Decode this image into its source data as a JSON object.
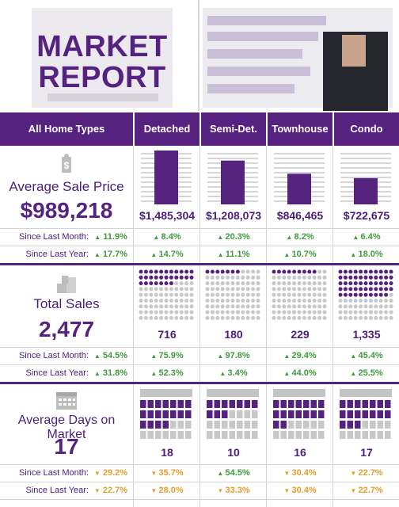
{
  "header": {
    "title_line1": "MARKET",
    "title_line2": "REPORT"
  },
  "columns": [
    "All Home Types",
    "Detached",
    "Semi-Det.",
    "Townhouse",
    "Condo"
  ],
  "colors": {
    "brand": "#55237f",
    "up": "#3f9b3f",
    "down": "#e0a030",
    "grid": "#d4d4d4",
    "inactive": "#c8c8c8"
  },
  "chart_data": [
    {
      "type": "bar",
      "metric": "Average Sale Price",
      "overall": "$989,218",
      "categories": [
        "Detached",
        "Semi-Det.",
        "Townhouse",
        "Condo"
      ],
      "values": [
        1485304,
        1208073,
        846465,
        722675
      ],
      "value_labels": [
        "$1,485,304",
        "$1,208,073",
        "$846,465",
        "$722,675"
      ],
      "since_last_month": {
        "label": "Since Last Month:",
        "overall": "11.9%",
        "overall_dir": "up",
        "values": [
          "8.4%",
          "20.3%",
          "8.2%",
          "6.4%"
        ],
        "dirs": [
          "up",
          "up",
          "up",
          "up"
        ]
      },
      "since_last_year": {
        "label": "Since Last Year:",
        "overall": "17.7%",
        "overall_dir": "up",
        "values": [
          "14.7%",
          "11.1%",
          "10.7%",
          "18.0%"
        ],
        "dirs": [
          "up",
          "up",
          "up",
          "up"
        ]
      }
    },
    {
      "type": "dot-matrix",
      "metric": "Total Sales",
      "overall": "2,477",
      "categories": [
        "Detached",
        "Semi-Det.",
        "Townhouse",
        "Condo"
      ],
      "values": [
        716,
        180,
        229,
        1335
      ],
      "value_labels": [
        "716",
        "180",
        "229",
        "1,335"
      ],
      "since_last_month": {
        "label": "Since Last Month:",
        "overall": "54.5%",
        "overall_dir": "up",
        "values": [
          "75.9%",
          "97.8%",
          "29.4%",
          "45.4%"
        ],
        "dirs": [
          "up",
          "up",
          "up",
          "up"
        ]
      },
      "since_last_year": {
        "label": "Since Last Year:",
        "overall": "31.8%",
        "overall_dir": "up",
        "values": [
          "52.3%",
          "3.4%",
          "44.0%",
          "25.5%"
        ],
        "dirs": [
          "up",
          "up",
          "up",
          "up"
        ]
      }
    },
    {
      "type": "calendar",
      "metric": "Average Days on Market",
      "overall": "17",
      "categories": [
        "Detached",
        "Semi-Det.",
        "Townhouse",
        "Condo"
      ],
      "values": [
        18,
        10,
        16,
        17
      ],
      "value_labels": [
        "18",
        "10",
        "16",
        "17"
      ],
      "since_last_month": {
        "label": "Since Last Month:",
        "overall": "29.2%",
        "overall_dir": "down",
        "values": [
          "35.7%",
          "54.5%",
          "30.4%",
          "22.7%"
        ],
        "dirs": [
          "down",
          "up",
          "down",
          "down"
        ]
      },
      "since_last_year": {
        "label": "Since Last Year:",
        "overall": "22.7%",
        "overall_dir": "down",
        "values": [
          "28.0%",
          "33.3%",
          "30.4%",
          "22.7%"
        ],
        "dirs": [
          "down",
          "down",
          "down",
          "down"
        ]
      }
    }
  ]
}
